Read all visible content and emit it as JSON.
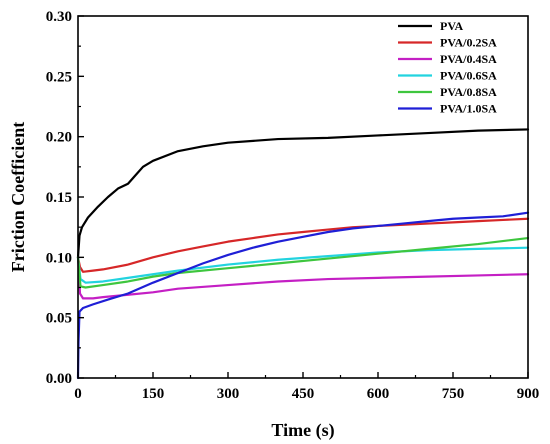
{
  "chart_data": {
    "type": "line",
    "xlabel": "Time (s)",
    "ylabel": "Friction  Coefficient",
    "xlim": [
      0,
      900
    ],
    "ylim": [
      0,
      0.3
    ],
    "xticks": [
      "0",
      "150",
      "300",
      "450",
      "600",
      "750",
      "900"
    ],
    "yticks": [
      "0.00",
      "0.05",
      "0.10",
      "0.15",
      "0.20",
      "0.25",
      "0.30"
    ],
    "grid": false,
    "legend_position": "top-right",
    "series": [
      {
        "name": "PVA",
        "color": "#000000",
        "points": [
          [
            0,
            0.1
          ],
          [
            3,
            0.118
          ],
          [
            8,
            0.125
          ],
          [
            20,
            0.133
          ],
          [
            40,
            0.142
          ],
          [
            60,
            0.15
          ],
          [
            80,
            0.157
          ],
          [
            100,
            0.161
          ],
          [
            115,
            0.168
          ],
          [
            130,
            0.175
          ],
          [
            150,
            0.18
          ],
          [
            200,
            0.188
          ],
          [
            250,
            0.192
          ],
          [
            300,
            0.195
          ],
          [
            400,
            0.198
          ],
          [
            500,
            0.199
          ],
          [
            600,
            0.201
          ],
          [
            700,
            0.203
          ],
          [
            800,
            0.205
          ],
          [
            900,
            0.206
          ]
        ]
      },
      {
        "name": "PVA/0.2SA",
        "color": "#d62728",
        "points": [
          [
            0,
            0.1
          ],
          [
            4,
            0.092
          ],
          [
            10,
            0.088
          ],
          [
            30,
            0.089
          ],
          [
            50,
            0.09
          ],
          [
            100,
            0.094
          ],
          [
            150,
            0.1
          ],
          [
            200,
            0.105
          ],
          [
            250,
            0.109
          ],
          [
            300,
            0.113
          ],
          [
            350,
            0.116
          ],
          [
            400,
            0.119
          ],
          [
            450,
            0.121
          ],
          [
            500,
            0.123
          ],
          [
            550,
            0.125
          ],
          [
            600,
            0.126
          ],
          [
            650,
            0.127
          ],
          [
            700,
            0.128
          ],
          [
            750,
            0.129
          ],
          [
            800,
            0.13
          ],
          [
            850,
            0.131
          ],
          [
            900,
            0.132
          ]
        ]
      },
      {
        "name": "PVA/0.4SA",
        "color": "#c41fc4",
        "points": [
          [
            0,
            0.1
          ],
          [
            4,
            0.07
          ],
          [
            10,
            0.066
          ],
          [
            30,
            0.066
          ],
          [
            50,
            0.067
          ],
          [
            100,
            0.069
          ],
          [
            150,
            0.071
          ],
          [
            200,
            0.074
          ],
          [
            300,
            0.077
          ],
          [
            400,
            0.08
          ],
          [
            500,
            0.082
          ],
          [
            600,
            0.083
          ],
          [
            700,
            0.084
          ],
          [
            800,
            0.085
          ],
          [
            900,
            0.086
          ]
        ]
      },
      {
        "name": "PVA/0.6SA",
        "color": "#22d3df",
        "points": [
          [
            0,
            0.1
          ],
          [
            5,
            0.082
          ],
          [
            15,
            0.079
          ],
          [
            50,
            0.08
          ],
          [
            100,
            0.083
          ],
          [
            150,
            0.086
          ],
          [
            200,
            0.089
          ],
          [
            300,
            0.094
          ],
          [
            400,
            0.098
          ],
          [
            500,
            0.101
          ],
          [
            600,
            0.104
          ],
          [
            700,
            0.106
          ],
          [
            800,
            0.107
          ],
          [
            900,
            0.108
          ]
        ]
      },
      {
        "name": "PVA/0.8SA",
        "color": "#3ec63e",
        "points": [
          [
            0,
            0.1
          ],
          [
            5,
            0.076
          ],
          [
            15,
            0.075
          ],
          [
            50,
            0.077
          ],
          [
            100,
            0.08
          ],
          [
            150,
            0.084
          ],
          [
            200,
            0.087
          ],
          [
            300,
            0.091
          ],
          [
            400,
            0.095
          ],
          [
            500,
            0.099
          ],
          [
            600,
            0.103
          ],
          [
            700,
            0.107
          ],
          [
            800,
            0.111
          ],
          [
            900,
            0.116
          ]
        ]
      },
      {
        "name": "PVA/1.0SA",
        "color": "#1f1fd6",
        "points": [
          [
            0,
            0.0
          ],
          [
            1,
            0.03
          ],
          [
            3,
            0.055
          ],
          [
            10,
            0.058
          ],
          [
            30,
            0.061
          ],
          [
            60,
            0.065
          ],
          [
            100,
            0.07
          ],
          [
            150,
            0.079
          ],
          [
            200,
            0.087
          ],
          [
            250,
            0.095
          ],
          [
            300,
            0.102
          ],
          [
            350,
            0.108
          ],
          [
            400,
            0.113
          ],
          [
            450,
            0.117
          ],
          [
            500,
            0.121
          ],
          [
            550,
            0.124
          ],
          [
            600,
            0.126
          ],
          [
            650,
            0.128
          ],
          [
            700,
            0.13
          ],
          [
            750,
            0.132
          ],
          [
            800,
            0.133
          ],
          [
            850,
            0.134
          ],
          [
            900,
            0.137
          ]
        ]
      }
    ]
  }
}
